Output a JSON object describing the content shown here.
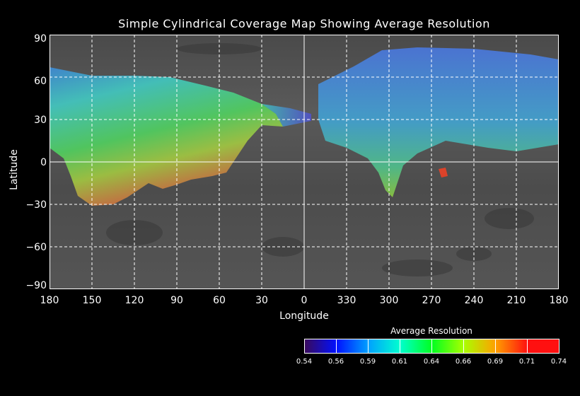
{
  "title": "Simple Cylindrical Coverage Map Showing Average Resolution",
  "chart_data": {
    "type": "map",
    "projection": "Simple Cylindrical",
    "title": "Simple Cylindrical Coverage Map Showing Average Resolution",
    "xlabel": "Longitude",
    "ylabel": "Latitude",
    "x_ticks": [
      "180",
      "150",
      "120",
      "90",
      "60",
      "30",
      "0",
      "330",
      "300",
      "270",
      "240",
      "210",
      "180"
    ],
    "y_ticks": [
      "90",
      "60",
      "30",
      "0",
      "−30",
      "−60",
      "−90"
    ],
    "xlim": [
      180,
      -180
    ],
    "ylim": [
      -90,
      90
    ],
    "grid": true,
    "colorbar": {
      "title": "Average Resolution",
      "ticks": [
        "0.54",
        "0.56",
        "0.59",
        "0.61",
        "0.64",
        "0.66",
        "0.69",
        "0.71",
        "0.74"
      ],
      "colors": [
        "#3a0a5a",
        "#0010ff",
        "#00a0ff",
        "#00ffd0",
        "#00ff20",
        "#a8ff00",
        "#ffa000",
        "#ff1010"
      ]
    }
  }
}
